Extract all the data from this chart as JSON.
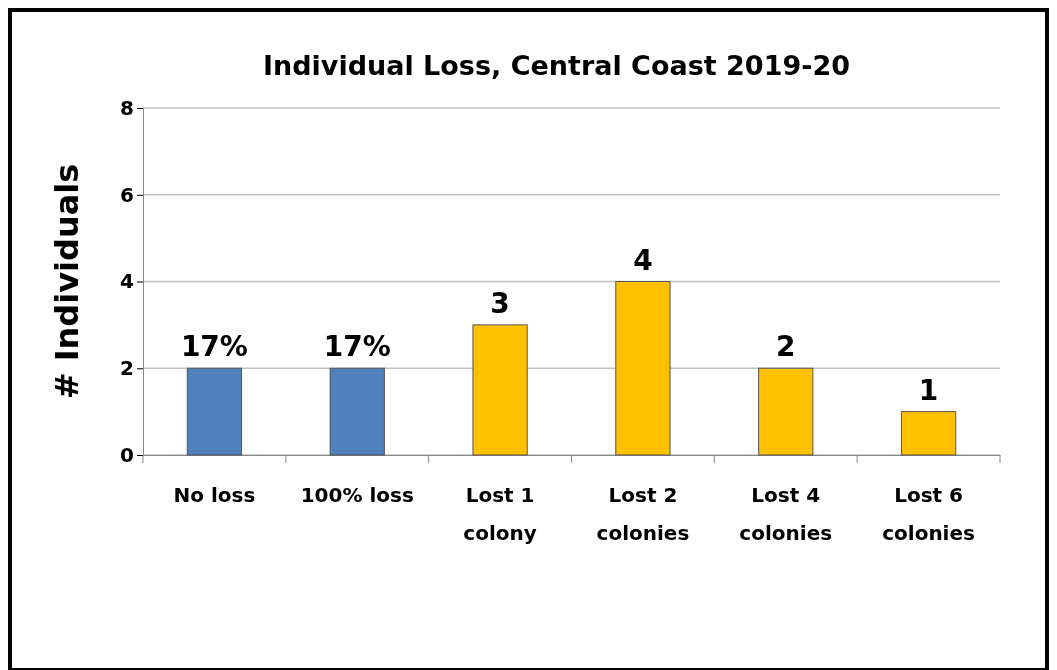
{
  "chart_data": {
    "type": "bar",
    "title": "Individual Loss, Central Coast 2019-20",
    "ylabel": "# Individuals",
    "categories": [
      "No loss",
      "100% loss",
      "Lost 1 colony",
      "Lost 2 colonies",
      "Lost 4 colonies",
      "Lost 6 colonies"
    ],
    "values": [
      2,
      2,
      3,
      4,
      2,
      1
    ],
    "colors": [
      "#4f81bd",
      "#4f81bd",
      "#ffc000",
      "#ffc000",
      "#ffc000",
      "#ffc000"
    ],
    "value_labels": [
      null,
      null,
      "3",
      "4",
      "2",
      "1"
    ],
    "annotations": [
      {
        "text": "17%",
        "x": "No loss",
        "y": 2
      },
      {
        "text": "17%",
        "x": "100% loss",
        "y": 2
      }
    ],
    "ylim": [
      0,
      8
    ],
    "yticks": [
      0,
      2,
      4,
      6,
      8
    ],
    "grid": "y"
  }
}
